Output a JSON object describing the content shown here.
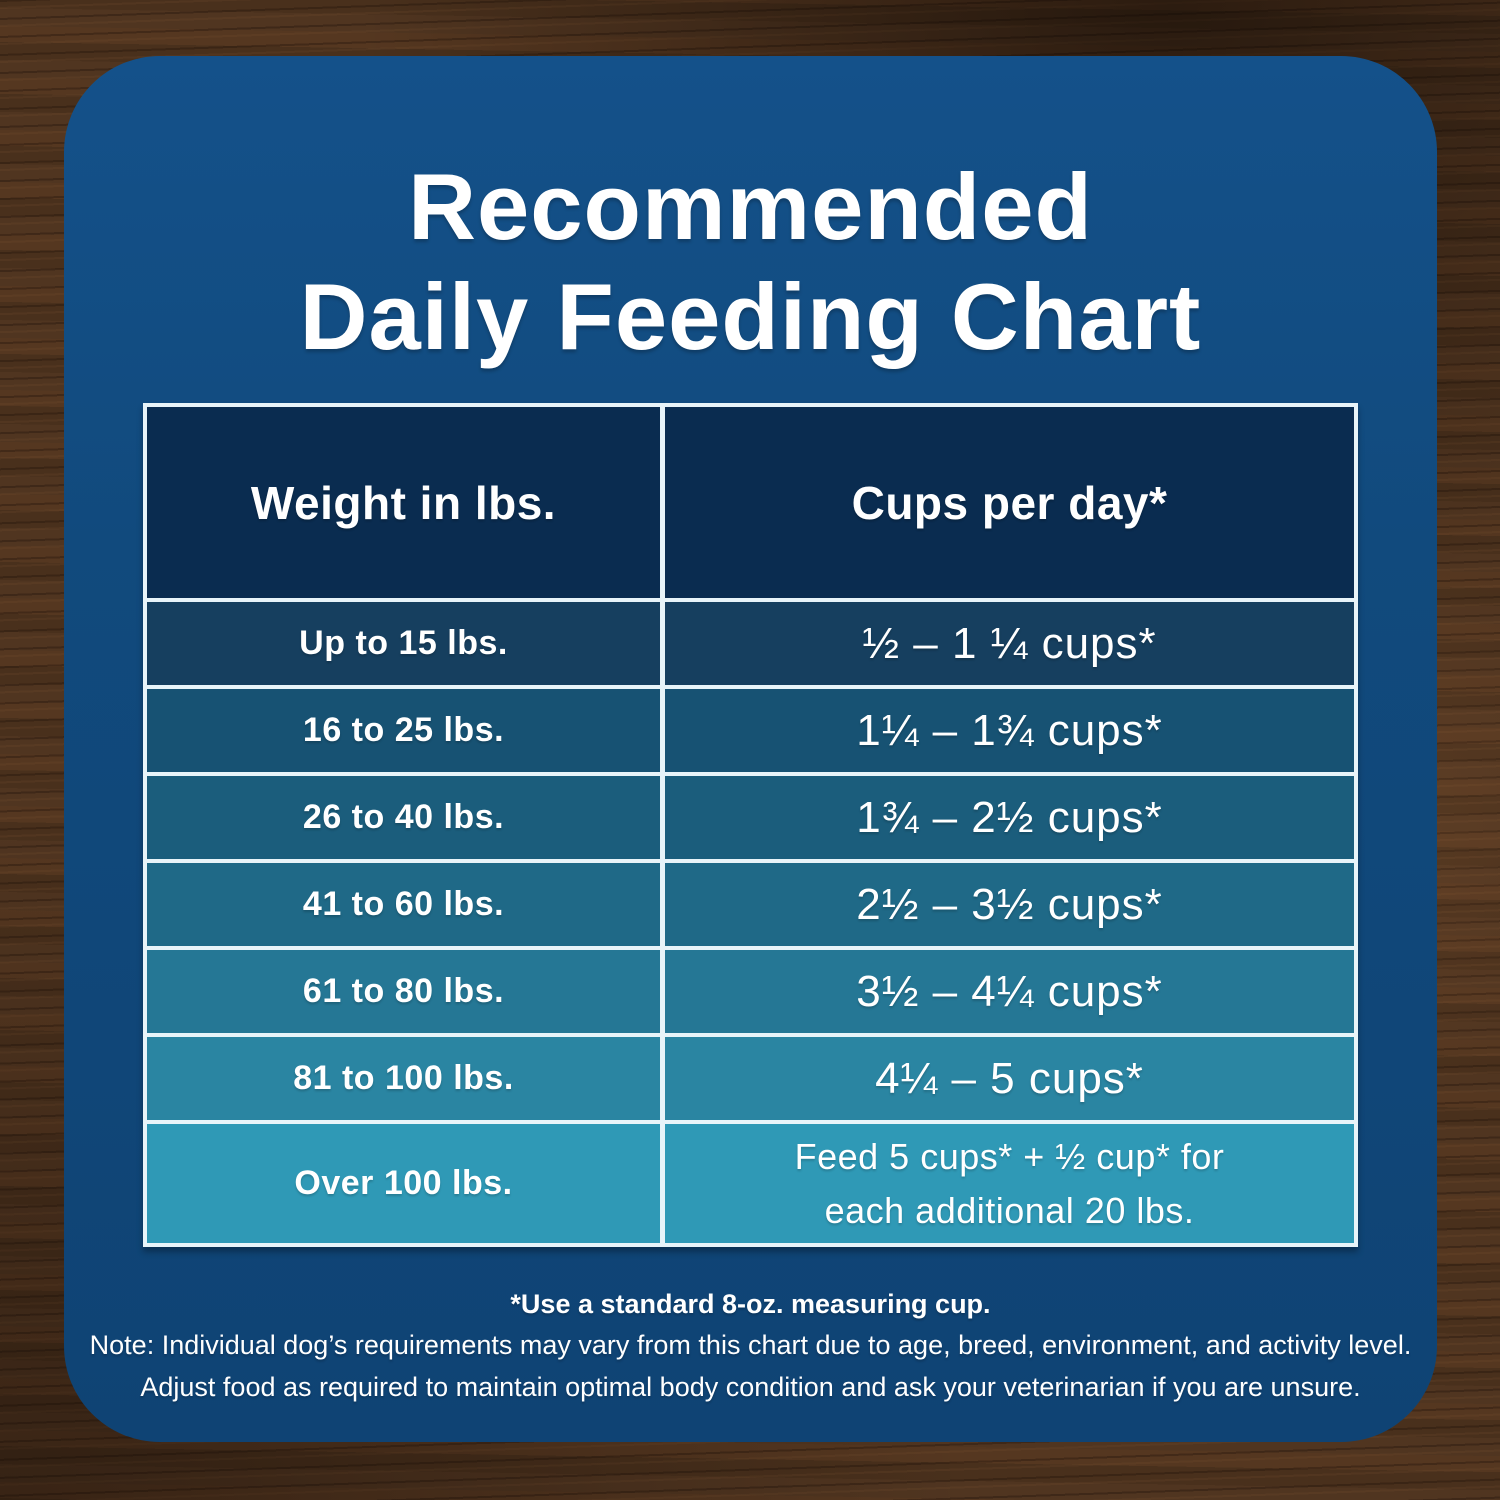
{
  "title": {
    "line1": "Recommended",
    "line2": "Daily Feeding Chart"
  },
  "chart_data": {
    "type": "table",
    "title": "Recommended Daily Feeding Chart",
    "columns": [
      "Weight in lbs.",
      "Cups per day*"
    ],
    "rows": [
      [
        "Up to 15 lbs.",
        "½ – 1 ¼ cups*"
      ],
      [
        "16 to 25 lbs.",
        "1¼ – 1¾  cups*"
      ],
      [
        "26 to 40 lbs.",
        "1¾ – 2½ cups*"
      ],
      [
        "41 to 60 lbs.",
        "2½ – 3½ cups*"
      ],
      [
        "61 to 80 lbs.",
        "3½ – 4¼ cups*"
      ],
      [
        "81 to 100 lbs.",
        "4¼ – 5 cups*"
      ],
      [
        "Over 100 lbs.",
        "Feed 5 cups* + ½ cup* for\neach additional 20 lbs."
      ]
    ]
  },
  "notes": {
    "cup_note": "*Use a standard 8-oz. measuring cup.",
    "variance_note": "Note: Individual dog’s requirements may vary from this chart due to age, breed, environment, and activity level.",
    "adjust_note": "Adjust food as required to maintain optimal body condition and ask your veterinarian if you are unsure."
  },
  "colors": {
    "card": "#114a7d",
    "header_bg": "#0a2c50",
    "grid_line": "#e8f4f9",
    "row_backgrounds": [
      "#163f5f",
      "#175273",
      "#1b5d7c",
      "#1f6987",
      "#257795",
      "#2a85a2",
      "#2f99b6"
    ]
  }
}
